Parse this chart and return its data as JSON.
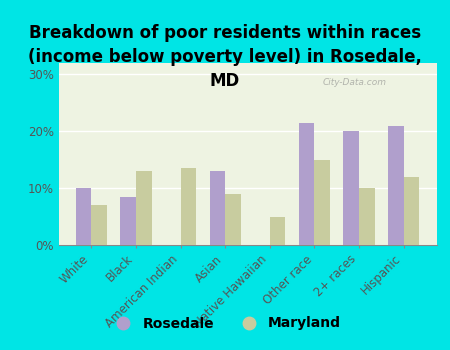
{
  "title": "Breakdown of poor residents within races\n(income below poverty level) in Rosedale,\nMD",
  "categories": [
    "White",
    "Black",
    "American Indian",
    "Asian",
    "Native Hawaiian",
    "Other race",
    "2+ races",
    "Hispanic"
  ],
  "rosedale": [
    10.0,
    8.5,
    0.0,
    13.0,
    0.0,
    21.5,
    20.0,
    21.0
  ],
  "maryland": [
    7.0,
    13.0,
    13.5,
    9.0,
    5.0,
    15.0,
    10.0,
    12.0
  ],
  "rosedale_color": "#b09fcc",
  "maryland_color": "#c8cc9f",
  "background_color": "#00e5e5",
  "plot_bg": "#eef3e2",
  "ylim": [
    0,
    32
  ],
  "yticks": [
    0,
    10,
    20,
    30
  ],
  "ytick_labels": [
    "0%",
    "10%",
    "20%",
    "30%"
  ],
  "watermark": "City-Data.com",
  "title_fontsize": 12,
  "tick_fontsize": 8.5,
  "legend_fontsize": 10
}
